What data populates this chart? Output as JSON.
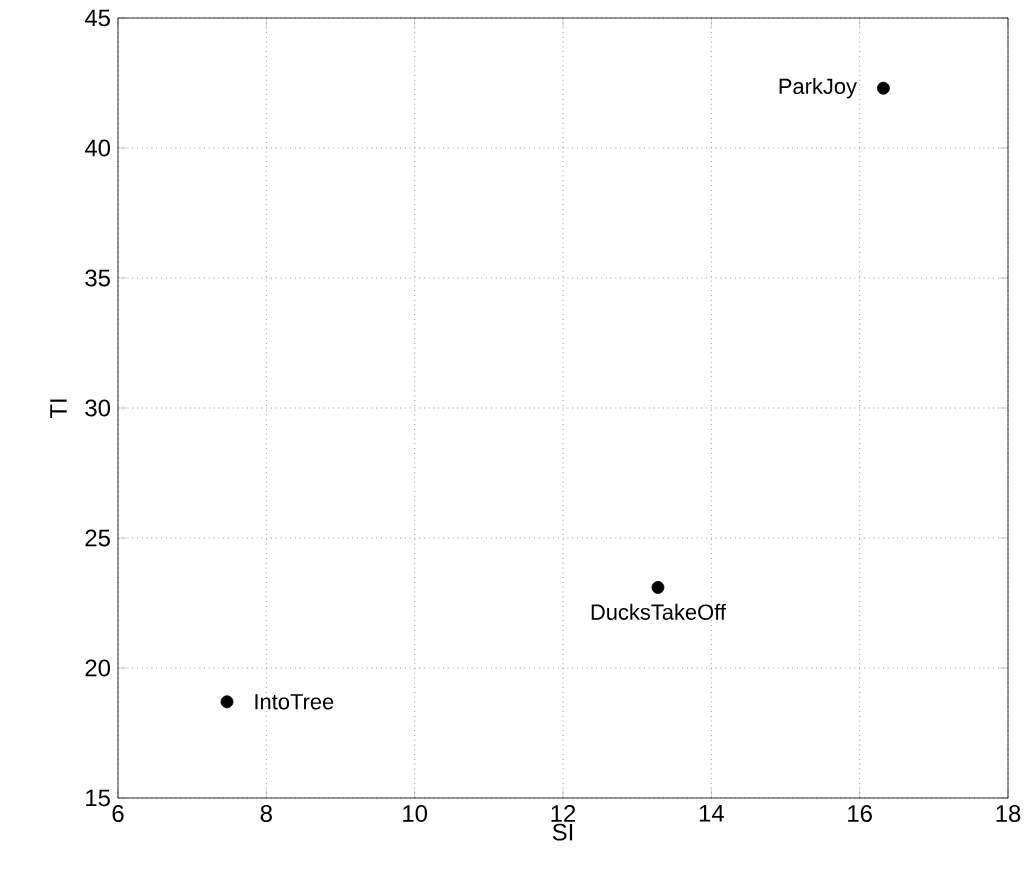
{
  "chart_data": {
    "type": "scatter",
    "xlabel": "SI",
    "ylabel": "TI",
    "x": [
      16.32,
      13.28,
      7.47
    ],
    "values": [
      42.3,
      23.1,
      18.7
    ],
    "color": "#000000",
    "marker": "circle",
    "grid": true,
    "xlim": [
      6,
      18
    ],
    "ylim": [
      15,
      45
    ],
    "xticks": [
      6,
      8,
      10,
      12,
      14,
      16,
      18
    ],
    "yticks": [
      15,
      20,
      25,
      30,
      35,
      40,
      45
    ],
    "annotations": [
      {
        "text": "ParkJoy",
        "x": 16.32,
        "y": 42.3
      },
      {
        "text": "DucksTakeOff",
        "x": 13.28,
        "y": 23.1
      },
      {
        "text": "IntoTree",
        "x": 7.47,
        "y": 18.7
      }
    ]
  }
}
